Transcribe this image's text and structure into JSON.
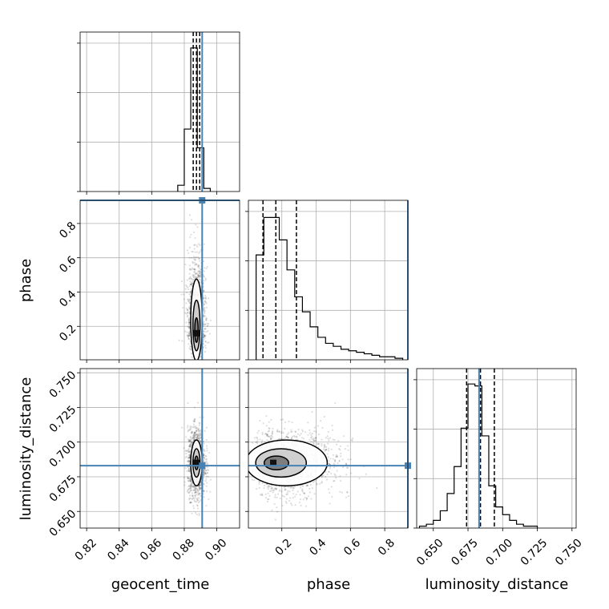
{
  "chart_data": {
    "type": "corner",
    "parameters": [
      "geocent_time",
      "phase",
      "luminosity_distance"
    ],
    "truths": {
      "geocent_time": 0.891,
      "phase": 0.935,
      "luminosity_distance": 0.683
    },
    "truth_color": "#4682b4",
    "grid": true,
    "axes": {
      "geocent_time": {
        "range": [
          0.816,
          0.914
        ],
        "ticks": [
          0.82,
          0.84,
          0.86,
          0.88,
          0.9
        ],
        "tick_labels": [
          "0.82",
          "0.84",
          "0.86",
          "0.88",
          "0.90"
        ]
      },
      "phase": {
        "range": [
          0.005,
          0.935
        ],
        "ticks": [
          0.2,
          0.4,
          0.6,
          0.8
        ],
        "tick_labels": [
          "0.2",
          "0.4",
          "0.6",
          "0.8"
        ]
      },
      "luminosity_distance": {
        "range": [
          0.638,
          0.753
        ],
        "ticks": [
          0.65,
          0.675,
          0.7,
          0.725,
          0.75
        ],
        "tick_labels": [
          "0.650",
          "0.675",
          "0.700",
          "0.725",
          "0.750"
        ]
      }
    },
    "histograms": [
      {
        "param": "geocent_time",
        "edges": [
          0.876,
          0.88,
          0.884,
          0.888,
          0.892,
          0.896
        ],
        "counts": [
          2,
          20,
          46,
          14,
          1
        ],
        "ymax": 48,
        "quantiles": [
          0.8855,
          0.8875,
          0.8895
        ]
      },
      {
        "param": "phase",
        "edges": [
          0.05,
          0.095,
          0.14,
          0.185,
          0.23,
          0.275,
          0.32,
          0.365,
          0.41,
          0.455,
          0.5,
          0.545,
          0.59,
          0.635,
          0.68,
          0.725,
          0.77,
          0.815,
          0.86,
          0.905
        ],
        "counts": [
          70,
          95,
          95,
          80,
          60,
          42,
          32,
          22,
          15,
          11,
          9,
          7,
          6,
          5,
          4,
          3,
          2,
          2,
          1
        ],
        "ymax": 100,
        "quantiles": [
          0.09,
          0.165,
          0.285
        ]
      },
      {
        "param": "luminosity_distance",
        "edges": [
          0.64,
          0.645,
          0.65,
          0.655,
          0.66,
          0.665,
          0.67,
          0.675,
          0.68,
          0.685,
          0.69,
          0.695,
          0.7,
          0.705,
          0.71,
          0.715,
          0.72,
          0.725
        ],
        "counts": [
          1,
          2,
          4,
          9,
          18,
          32,
          52,
          75,
          74,
          48,
          22,
          11,
          7,
          4,
          2,
          1,
          1
        ],
        "ymax": 78,
        "quantiles": [
          0.674,
          0.684,
          0.694
        ]
      }
    ],
    "pairs": [
      {
        "x": "geocent_time",
        "y": "phase",
        "center": [
          0.8875,
          0.16
        ],
        "spread": [
          0.0022,
          0.14
        ]
      },
      {
        "x": "geocent_time",
        "y": "luminosity_distance",
        "center": [
          0.8875,
          0.685
        ],
        "spread": [
          0.0022,
          0.011
        ]
      },
      {
        "x": "phase",
        "y": "luminosity_distance",
        "center": [
          0.15,
          0.685
        ],
        "spread": [
          0.14,
          0.011
        ]
      }
    ]
  }
}
